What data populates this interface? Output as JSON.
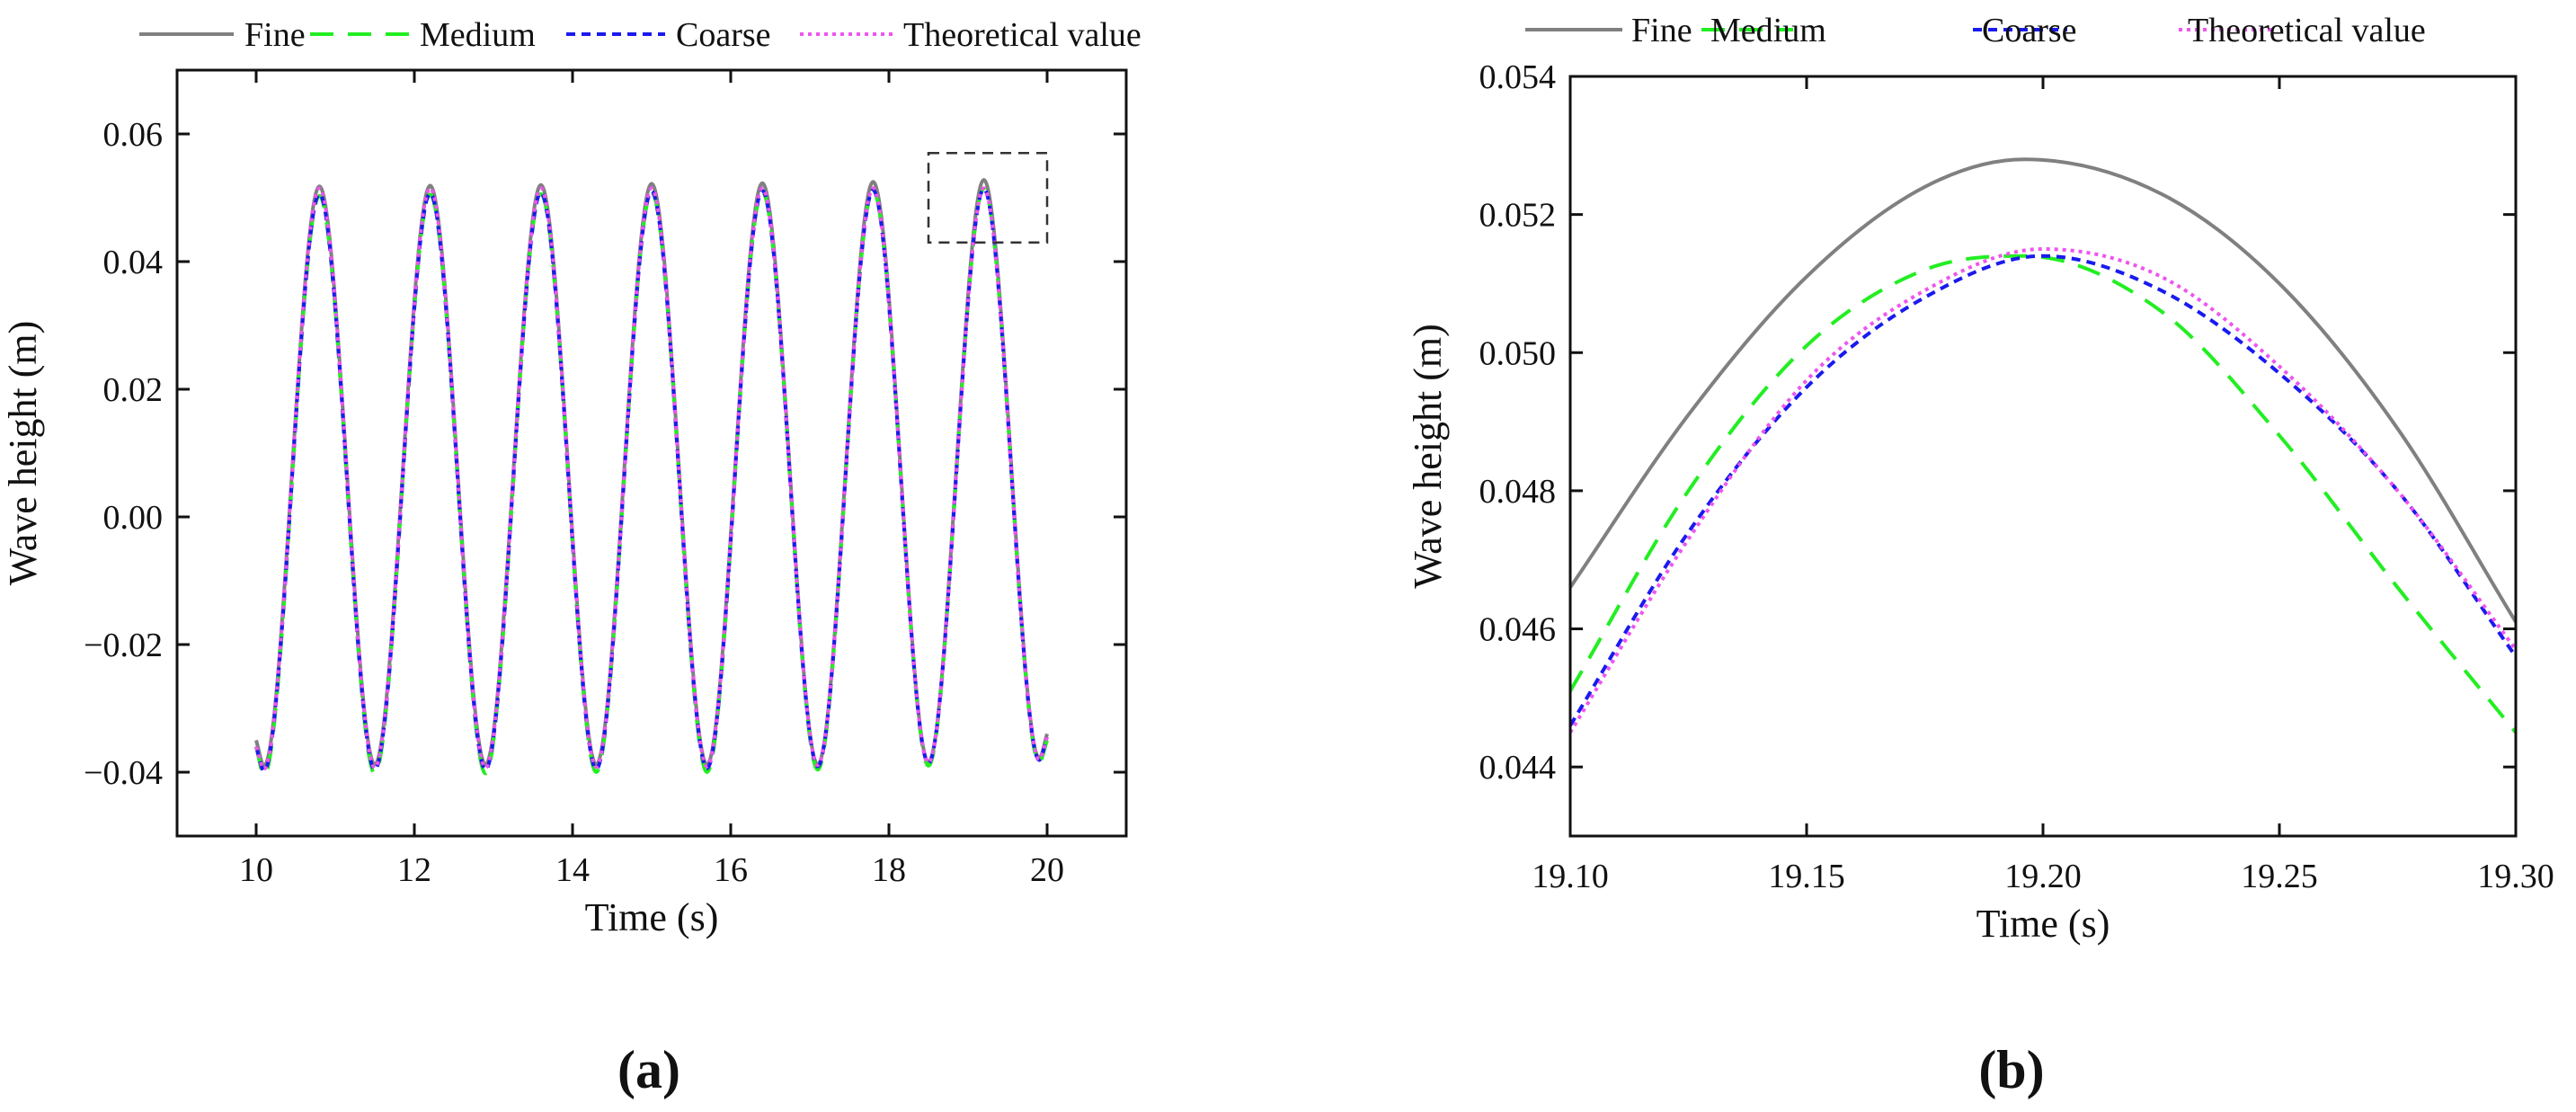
{
  "figure_labels": {
    "a": "(a)",
    "b": "(b)"
  },
  "legend": [
    {
      "key": "fine",
      "label": "Fine"
    },
    {
      "key": "medium",
      "label": "Medium"
    },
    {
      "key": "coarse",
      "label": "Coarse"
    },
    {
      "key": "theory",
      "label": "Theoretical value"
    }
  ],
  "styles": {
    "fine": {
      "color": "#808080",
      "dash": ""
    },
    "medium": {
      "color": "#22ee22",
      "dash": "26,16"
    },
    "coarse": {
      "color": "#1a1aee",
      "dash": "10,7"
    },
    "theory": {
      "color": "#ee55ee",
      "dash": "4,5"
    },
    "zoom_box": {
      "color": "#333333",
      "dash": "12,8"
    }
  },
  "chart_data": [
    {
      "id": "a",
      "type": "line",
      "title": "",
      "xlabel": "Time (s)",
      "ylabel": "Wave height (m)",
      "xlim": [
        9,
        21
      ],
      "ylim": [
        -0.05,
        0.07
      ],
      "xticks": [
        10,
        12,
        14,
        16,
        18,
        20
      ],
      "xtick_labels": [
        "10",
        "12",
        "14",
        "16",
        "18",
        "20"
      ],
      "yticks": [
        -0.04,
        -0.02,
        0.0,
        0.02,
        0.04,
        0.06
      ],
      "ytick_labels": [
        "−0.04",
        "−0.02",
        "0.00",
        "0.02",
        "0.04",
        "0.06"
      ],
      "grid": false,
      "legend_position": "top",
      "series": [
        {
          "name": "Fine",
          "key": "fine",
          "x": [
            10,
            10.1,
            10.8,
            11.5,
            12.2,
            12.9,
            13.6,
            14.3,
            15.0,
            15.7,
            16.4,
            17.1,
            17.8,
            18.5,
            19.2,
            19.9,
            20
          ],
          "y": [
            -0.035,
            -0.039,
            0.0518,
            -0.0388,
            0.0519,
            -0.0388,
            0.052,
            -0.0388,
            0.0522,
            -0.0388,
            0.0523,
            -0.0388,
            0.0525,
            -0.0384,
            0.0528,
            -0.0378,
            -0.034
          ]
        },
        {
          "name": "Medium",
          "key": "medium",
          "x": [
            10,
            10.1,
            10.8,
            11.5,
            12.2,
            12.9,
            13.6,
            14.3,
            15.0,
            15.7,
            16.4,
            17.1,
            17.8,
            18.5,
            19.2,
            19.9,
            20
          ],
          "y": [
            -0.036,
            -0.0405,
            0.0503,
            -0.0402,
            0.0505,
            -0.0402,
            0.0506,
            -0.04,
            0.0508,
            -0.04,
            0.0509,
            -0.0396,
            0.0511,
            -0.039,
            0.0514,
            -0.0385,
            -0.035
          ]
        },
        {
          "name": "Coarse",
          "key": "coarse",
          "x": [
            10,
            10.1,
            10.8,
            11.5,
            12.2,
            12.9,
            13.6,
            14.3,
            15.0,
            15.7,
            16.4,
            17.1,
            17.8,
            18.5,
            19.2,
            19.9,
            20
          ],
          "y": [
            -0.036,
            -0.0398,
            0.0506,
            -0.0396,
            0.0507,
            -0.0396,
            0.0508,
            -0.0395,
            0.051,
            -0.0394,
            0.0511,
            -0.0391,
            0.0512,
            -0.0386,
            0.0514,
            -0.0381,
            -0.0345
          ]
        },
        {
          "name": "Theoretical value",
          "key": "theory",
          "x": [
            10,
            10.1,
            10.8,
            11.5,
            12.2,
            12.9,
            13.6,
            14.3,
            15.0,
            15.7,
            16.4,
            17.1,
            17.8,
            18.5,
            19.2,
            19.9,
            20
          ],
          "y": [
            -0.036,
            -0.0395,
            0.0515,
            -0.0393,
            0.0515,
            -0.0393,
            0.0515,
            -0.0392,
            0.0515,
            -0.0391,
            0.0515,
            -0.0389,
            0.0515,
            -0.0385,
            0.0515,
            -0.038,
            -0.0345
          ]
        }
      ],
      "zoom_box": {
        "x": [
          18.5,
          20.0
        ],
        "y": [
          0.043,
          0.057
        ]
      }
    },
    {
      "id": "b",
      "type": "line",
      "title": "",
      "xlabel": "Time (s)",
      "ylabel": "Wave height (m)",
      "xlim": [
        19.1,
        19.3
      ],
      "ylim": [
        0.043,
        0.054
      ],
      "xticks": [
        19.1,
        19.15,
        19.2,
        19.25,
        19.3
      ],
      "xtick_labels": [
        "19.10",
        "19.15",
        "19.20",
        "19.25",
        "19.30"
      ],
      "yticks": [
        0.044,
        0.046,
        0.048,
        0.05,
        0.052,
        0.054
      ],
      "ytick_labels": [
        "0.044",
        "0.046",
        "0.048",
        "0.050",
        "0.052",
        "0.054"
      ],
      "grid": false,
      "legend_position": "top",
      "series": [
        {
          "name": "Fine",
          "key": "fine",
          "x": [
            19.1,
            19.125,
            19.15,
            19.175,
            19.196,
            19.225,
            19.25,
            19.275,
            19.3
          ],
          "y": [
            0.0466,
            0.0491,
            0.0511,
            0.0524,
            0.0528,
            0.0523,
            0.051,
            0.0489,
            0.0461
          ]
        },
        {
          "name": "Medium",
          "key": "medium",
          "x": [
            19.1,
            19.125,
            19.15,
            19.175,
            19.196,
            19.225,
            19.25,
            19.275,
            19.3
          ],
          "y": [
            0.0451,
            0.048,
            0.0501,
            0.0512,
            0.0514,
            0.0506,
            0.0488,
            0.0466,
            0.0445
          ]
        },
        {
          "name": "Coarse",
          "key": "coarse",
          "x": [
            19.1,
            19.125,
            19.15,
            19.175,
            19.2,
            19.225,
            19.25,
            19.275,
            19.3
          ],
          "y": [
            0.0446,
            0.0474,
            0.0495,
            0.0508,
            0.0514,
            0.0509,
            0.0497,
            0.048,
            0.0456
          ]
        },
        {
          "name": "Theoretical value",
          "key": "theory",
          "x": [
            19.1,
            19.125,
            19.15,
            19.175,
            19.2,
            19.225,
            19.25,
            19.275,
            19.3
          ],
          "y": [
            0.0445,
            0.0473,
            0.0496,
            0.0509,
            0.0515,
            0.0511,
            0.0498,
            0.048,
            0.0457
          ]
        }
      ]
    }
  ]
}
